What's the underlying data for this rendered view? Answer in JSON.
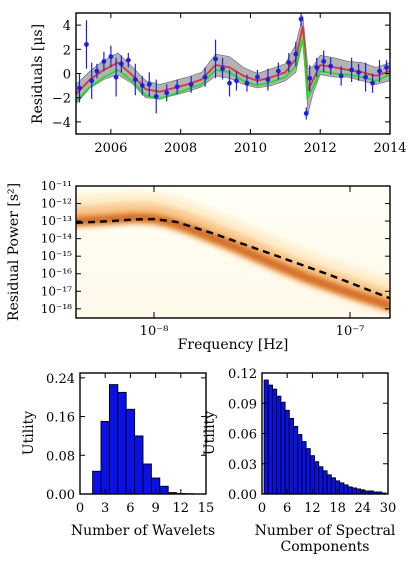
{
  "chart_data": [
    {
      "type": "line",
      "panel": "residuals",
      "ylabel": "Residuals [μs]",
      "xlabel": "",
      "xlim": [
        2005,
        2014
      ],
      "ylim": [
        -5,
        5
      ],
      "xticks": [
        2006,
        2008,
        2010,
        2012,
        2014
      ],
      "xtick_labels": [
        "2006",
        "2008",
        "2010",
        "2012",
        "2014"
      ],
      "yticks": [
        -4,
        -2,
        0,
        2,
        4
      ],
      "ytick_labels": [
        "−4",
        "−2",
        "0",
        "2",
        "4"
      ],
      "grid": false,
      "colors": {
        "data": "#1f1fe0",
        "model_a": "#d23a3a",
        "model_b": "#22dd22",
        "band": "#9a9a9a"
      },
      "band": {
        "x": [
          2005.0,
          2005.4,
          2005.8,
          2006.2,
          2006.6,
          2007.0,
          2007.4,
          2007.8,
          2008.2,
          2008.6,
          2009.0,
          2009.4,
          2009.8,
          2010.2,
          2010.6,
          2011.0,
          2011.3,
          2011.5,
          2011.65,
          2011.8,
          2012.0,
          2012.4,
          2012.8,
          2013.2,
          2013.6,
          2014.0
        ],
        "lower": [
          -2.5,
          -1.2,
          -0.5,
          -0.1,
          -0.8,
          -2.0,
          -2.1,
          -1.8,
          -1.5,
          -1.1,
          -0.2,
          -0.4,
          -0.9,
          -1.2,
          -1.0,
          -0.6,
          0.1,
          2.7,
          -3.3,
          -1.6,
          -0.1,
          -0.3,
          -0.3,
          -0.6,
          -0.9,
          -0.6
        ],
        "upper": [
          -0.9,
          0.2,
          1.1,
          1.7,
          0.6,
          -0.6,
          -0.9,
          -0.6,
          -0.3,
          0.1,
          1.6,
          1.4,
          0.5,
          0.0,
          0.4,
          0.8,
          2.4,
          4.8,
          0.4,
          0.6,
          1.5,
          1.3,
          1.0,
          0.9,
          0.5,
          0.9
        ]
      },
      "series": [
        {
          "kind": "model_a",
          "x": [
            2005.0,
            2005.4,
            2005.8,
            2006.2,
            2006.6,
            2007.0,
            2007.4,
            2007.8,
            2008.2,
            2008.6,
            2009.0,
            2009.4,
            2009.8,
            2010.2,
            2010.6,
            2011.0,
            2011.3,
            2011.5,
            2011.65,
            2011.8,
            2012.0,
            2012.4,
            2012.8,
            2013.2,
            2013.6,
            2014.0
          ],
          "y": [
            -1.7,
            -0.5,
            0.3,
            0.9,
            -0.1,
            -1.3,
            -1.5,
            -1.2,
            -0.9,
            -0.5,
            0.7,
            0.5,
            -0.2,
            -0.6,
            -0.3,
            0.1,
            1.2,
            3.9,
            -1.4,
            -0.5,
            0.7,
            0.5,
            0.3,
            0.1,
            -0.2,
            0.2
          ]
        },
        {
          "kind": "model_b",
          "x": [
            2005.0,
            2005.4,
            2005.8,
            2006.2,
            2006.6,
            2007.0,
            2007.4,
            2007.8,
            2008.2,
            2008.6,
            2009.0,
            2009.4,
            2009.8,
            2010.2,
            2010.6,
            2011.0,
            2011.3,
            2011.5,
            2011.65,
            2011.8,
            2012.0,
            2012.4,
            2012.8,
            2013.2,
            2013.6,
            2014.0
          ],
          "y": [
            -2.3,
            -1.1,
            -0.3,
            0.3,
            -0.6,
            -1.8,
            -2.1,
            -1.7,
            -1.3,
            -0.9,
            0.3,
            0.1,
            -0.6,
            -1.0,
            -0.7,
            -0.3,
            0.6,
            2.8,
            -2.0,
            -1.1,
            0.2,
            0.0,
            -0.1,
            -0.3,
            -0.6,
            -0.1
          ]
        },
        {
          "kind": "data",
          "x": [
            2005.1,
            2005.3,
            2005.45,
            2005.6,
            2005.8,
            2006.0,
            2006.15,
            2006.3,
            2006.5,
            2006.7,
            2006.9,
            2007.1,
            2007.3,
            2007.6,
            2007.9,
            2008.3,
            2008.7,
            2009.0,
            2009.2,
            2009.4,
            2009.6,
            2009.9,
            2010.2,
            2010.5,
            2010.8,
            2011.1,
            2011.3,
            2011.45,
            2011.6,
            2011.7,
            2011.9,
            2012.1,
            2012.3,
            2012.6,
            2012.9,
            2013.1,
            2013.3,
            2013.5,
            2013.7,
            2013.9
          ],
          "y": [
            -1.2,
            2.4,
            -0.6,
            0.2,
            1.0,
            1.4,
            -0.3,
            0.8,
            1.1,
            -0.5,
            -1.0,
            -0.9,
            -1.9,
            -1.6,
            -1.1,
            -0.9,
            -0.3,
            1.2,
            0.4,
            -0.8,
            -0.6,
            -0.8,
            -0.3,
            -0.5,
            0.2,
            0.9,
            1.6,
            4.5,
            -3.3,
            -0.4,
            0.5,
            1.0,
            0.6,
            -0.2,
            0.3,
            0.1,
            -0.3,
            -0.8,
            0.2,
            0.5
          ],
          "err": [
            1.2,
            2.0,
            1.5,
            0.6,
            0.8,
            0.9,
            1.6,
            0.7,
            0.6,
            1.3,
            0.8,
            1.0,
            1.4,
            0.7,
            0.6,
            0.7,
            0.8,
            1.6,
            0.9,
            1.1,
            0.8,
            0.7,
            0.6,
            0.9,
            0.7,
            0.8,
            1.0,
            0.6,
            0.5,
            1.1,
            0.8,
            0.9,
            0.7,
            0.8,
            1.0,
            0.7,
            1.2,
            0.8,
            0.9,
            0.6
          ]
        }
      ]
    },
    {
      "type": "heatmap",
      "panel": "power",
      "xlabel": "Frequency [Hz]",
      "ylabel": "Residual Power [s²]",
      "x_scale": "log",
      "y_scale": "log",
      "xlim": [
        4e-09,
        1.6e-07
      ],
      "ylim": [
        3e-19,
        1e-11
      ],
      "xticks": [
        1e-08,
        1e-07
      ],
      "xtick_labels": [
        "10⁻⁸",
        "10⁻⁷"
      ],
      "yticks": [
        1e-18,
        1e-17,
        1e-16,
        1e-15,
        1e-14,
        1e-13,
        1e-12,
        1e-11
      ],
      "ytick_labels": [
        "10⁻¹⁸",
        "10⁻¹⁷",
        "10⁻¹⁶",
        "10⁻¹⁵",
        "10⁻¹⁴",
        "10⁻¹³",
        "10⁻¹²",
        "10⁻¹¹"
      ],
      "colormap": [
        "#fffdf0",
        "#fde6b8",
        "#f7b46a",
        "#e07a2a",
        "#b84a10"
      ],
      "ridge": {
        "x": [
          4e-09,
          6e-09,
          8e-09,
          1e-08,
          1.2e-08,
          1.6e-08,
          2.5e-08,
          4e-08,
          6e-08,
          1e-07,
          1.6e-07
        ],
        "y": [
          1e-13,
          1.3e-13,
          1.6e-13,
          1.4e-13,
          9e-14,
          3e-14,
          4e-15,
          4e-16,
          6e-17,
          8e-18,
          1.5e-18
        ]
      },
      "dashed_line": {
        "x": [
          4e-09,
          6e-09,
          8e-09,
          1e-08,
          1.3e-08,
          2e-08,
          4e-08,
          8e-08,
          1.6e-07
        ],
        "y": [
          8e-14,
          1e-13,
          1.25e-13,
          1.3e-13,
          9e-14,
          2e-14,
          1.3e-15,
          8e-17,
          4e-18
        ]
      },
      "spurs_x": [
        3.7e-08,
        1.18e-07
      ]
    },
    {
      "type": "bar",
      "panel": "wavelets",
      "xlabel": "Number of Wavelets",
      "ylabel": "Utility",
      "xlim": [
        0,
        15
      ],
      "ylim": [
        0,
        0.25
      ],
      "xticks": [
        0,
        3,
        6,
        9,
        12,
        15
      ],
      "xtick_labels": [
        "0",
        "3",
        "6",
        "9",
        "12",
        "15"
      ],
      "yticks": [
        0,
        0.08,
        0.16,
        0.24
      ],
      "ytick_labels": [
        "0.00",
        "0.08",
        "0.16",
        "0.24"
      ],
      "bar_color": "#0a10e8",
      "categories": [
        1,
        2,
        3,
        4,
        5,
        6,
        7,
        8,
        9,
        10,
        11,
        12,
        13,
        14
      ],
      "values": [
        0.0,
        0.047,
        0.15,
        0.226,
        0.21,
        0.175,
        0.12,
        0.062,
        0.033,
        0.016,
        0.003,
        0.001,
        0.0005,
        0.0
      ]
    },
    {
      "type": "bar",
      "panel": "spectral",
      "xlabel": "Number of Spectral\nComponents",
      "ylabel": "Utility",
      "xlim": [
        0,
        30
      ],
      "ylim": [
        0,
        0.12
      ],
      "xticks": [
        0,
        6,
        12,
        18,
        24,
        30
      ],
      "xtick_labels": [
        "0",
        "6",
        "12",
        "18",
        "24",
        "30"
      ],
      "yticks": [
        0,
        0.03,
        0.06,
        0.09,
        0.12
      ],
      "ytick_labels": [
        "0.00",
        "0.03",
        "0.06",
        "0.09",
        "0.12"
      ],
      "bar_color": "#0a10e8",
      "categories": [
        1,
        2,
        3,
        4,
        5,
        6,
        7,
        8,
        9,
        10,
        11,
        12,
        13,
        14,
        15,
        16,
        17,
        18,
        19,
        20,
        21,
        22,
        23,
        24,
        25,
        26,
        27,
        28,
        29
      ],
      "values": [
        0.113,
        0.108,
        0.104,
        0.097,
        0.091,
        0.083,
        0.075,
        0.067,
        0.059,
        0.052,
        0.045,
        0.038,
        0.032,
        0.027,
        0.023,
        0.019,
        0.016,
        0.013,
        0.011,
        0.009,
        0.007,
        0.006,
        0.005,
        0.004,
        0.003,
        0.003,
        0.002,
        0.002,
        0.001
      ]
    }
  ]
}
